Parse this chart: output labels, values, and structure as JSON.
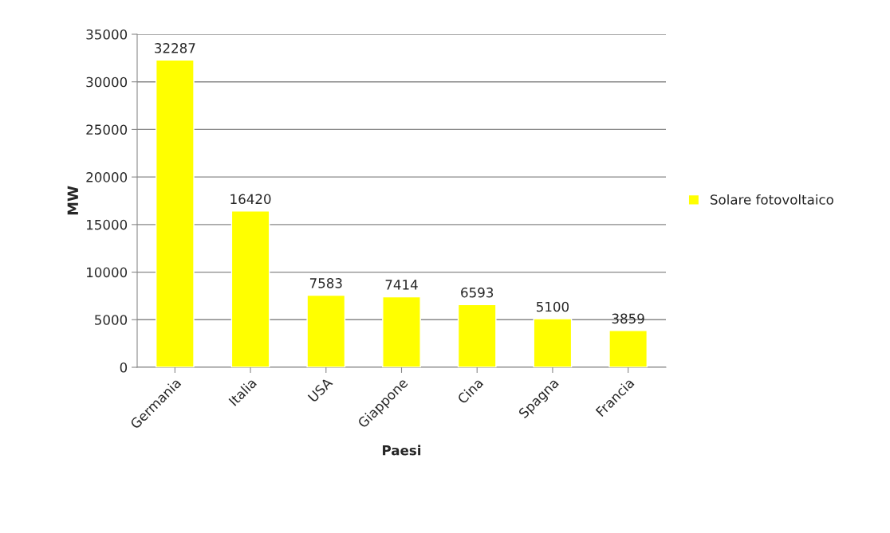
{
  "chart_data": {
    "type": "bar",
    "xlabel": "Paesi",
    "ylabel": "MW",
    "categories": [
      "Germania",
      "Italia",
      "USA",
      "Giappone",
      "Cina",
      "Spagna",
      "Francia"
    ],
    "series": [
      {
        "name": "Solare fotovoltaico",
        "color": "#ffff00",
        "values": [
          32287,
          16420,
          7583,
          7414,
          6593,
          5100,
          3859
        ]
      }
    ],
    "ylim": [
      0,
      35000
    ],
    "yticks": [
      0,
      5000,
      10000,
      15000,
      20000,
      25000,
      30000,
      35000
    ],
    "grid": "y",
    "legend": "right",
    "data_labels": true
  }
}
